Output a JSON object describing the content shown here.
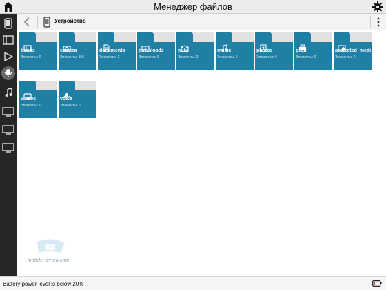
{
  "window": {
    "title": "Менеджер файлов"
  },
  "toolbar": {
    "breadcrumb": "Устройство"
  },
  "folders": [
    {
      "name": "books",
      "count": "Элементы: 0",
      "icon": "book-icon"
    },
    {
      "name": "camera",
      "count": "Элементы: 196",
      "icon": "camera-icon"
    },
    {
      "name": "documents",
      "count": "Элементы: 2",
      "icon": "document-icon"
    },
    {
      "name": "downloads",
      "count": "Элементы: 0",
      "icon": "download-icon"
    },
    {
      "name": "misc",
      "count": "Элементы: 2",
      "icon": "box-icon"
    },
    {
      "name": "music",
      "count": "Элементы: 0",
      "icon": "music-note-icon"
    },
    {
      "name": "photos",
      "count": "Элементы: 0",
      "icon": "photo-icon"
    },
    {
      "name": "print",
      "count": "Элементы: 0",
      "icon": "printer-icon"
    },
    {
      "name": "protected_media",
      "count": "Элементы: 0",
      "icon": "lock-screen-icon"
    },
    {
      "name": "videos",
      "count": "Элементы: 0",
      "icon": "video-icon"
    },
    {
      "name": "voice",
      "count": "Элементы: 0",
      "icon": "microphone-icon"
    }
  ],
  "sidebar": {
    "items": [
      {
        "icon": "phone-icon"
      },
      {
        "icon": "book-icon"
      },
      {
        "icon": "play-icon"
      },
      {
        "icon": "microphone-icon",
        "active": true
      },
      {
        "icon": "music-note-icon"
      },
      {
        "icon": "monitor-icon"
      },
      {
        "icon": "monitor-icon"
      },
      {
        "icon": "monitor-icon"
      }
    ]
  },
  "watermark": {
    "text": "mobile-review.com"
  },
  "status": {
    "message": "Battery power level is below 20%"
  },
  "colors": {
    "folder": "#1f7fa5",
    "sidebar": "#262626",
    "active_item": "#666666"
  }
}
